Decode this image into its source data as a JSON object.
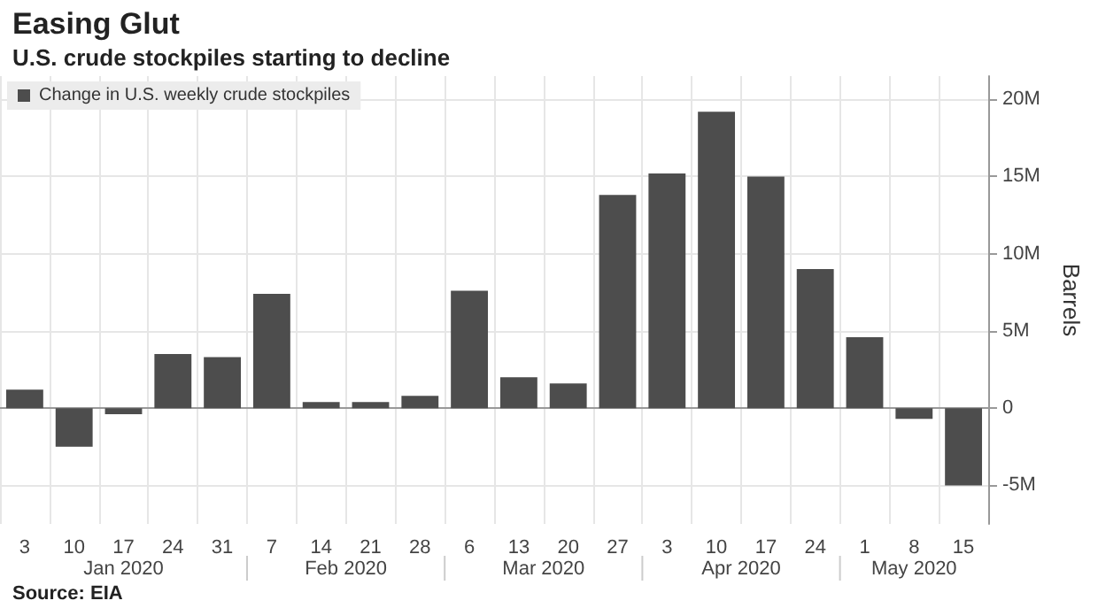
{
  "chart_data": {
    "type": "bar",
    "title": "Easing Glut",
    "subtitle": "U.S. crude stockpiles starting to decline",
    "ylabel": "Barrels",
    "categories": [
      "3",
      "10",
      "17",
      "24",
      "31",
      "7",
      "14",
      "21",
      "28",
      "6",
      "13",
      "20",
      "27",
      "3",
      "10",
      "17",
      "24",
      "1",
      "8",
      "15"
    ],
    "series": [
      {
        "name": "Change in U.S. weekly crude stockpiles",
        "color": "#4d4d4d",
        "values": [
          1.2,
          -2.5,
          -0.4,
          3.5,
          3.3,
          7.4,
          0.4,
          0.4,
          0.8,
          7.6,
          2.0,
          1.6,
          13.8,
          15.2,
          19.2,
          15.0,
          9.0,
          4.6,
          -0.7,
          -5.0
        ]
      }
    ],
    "ylim": [
      -7.5,
      21.5
    ],
    "yticks": [
      {
        "value": -5,
        "label": "-5M"
      },
      {
        "value": 0,
        "label": "0"
      },
      {
        "value": 5,
        "label": "5M"
      },
      {
        "value": 10,
        "label": "10M"
      },
      {
        "value": 15,
        "label": "15M"
      },
      {
        "value": 20,
        "label": "20M"
      }
    ],
    "grid": true,
    "legend": "top left",
    "annotations": [
      "Jan 2020",
      "Feb 2020",
      "Mar 2020",
      "Apr 2020",
      "May 2020",
      "Source: EIA"
    ]
  }
}
